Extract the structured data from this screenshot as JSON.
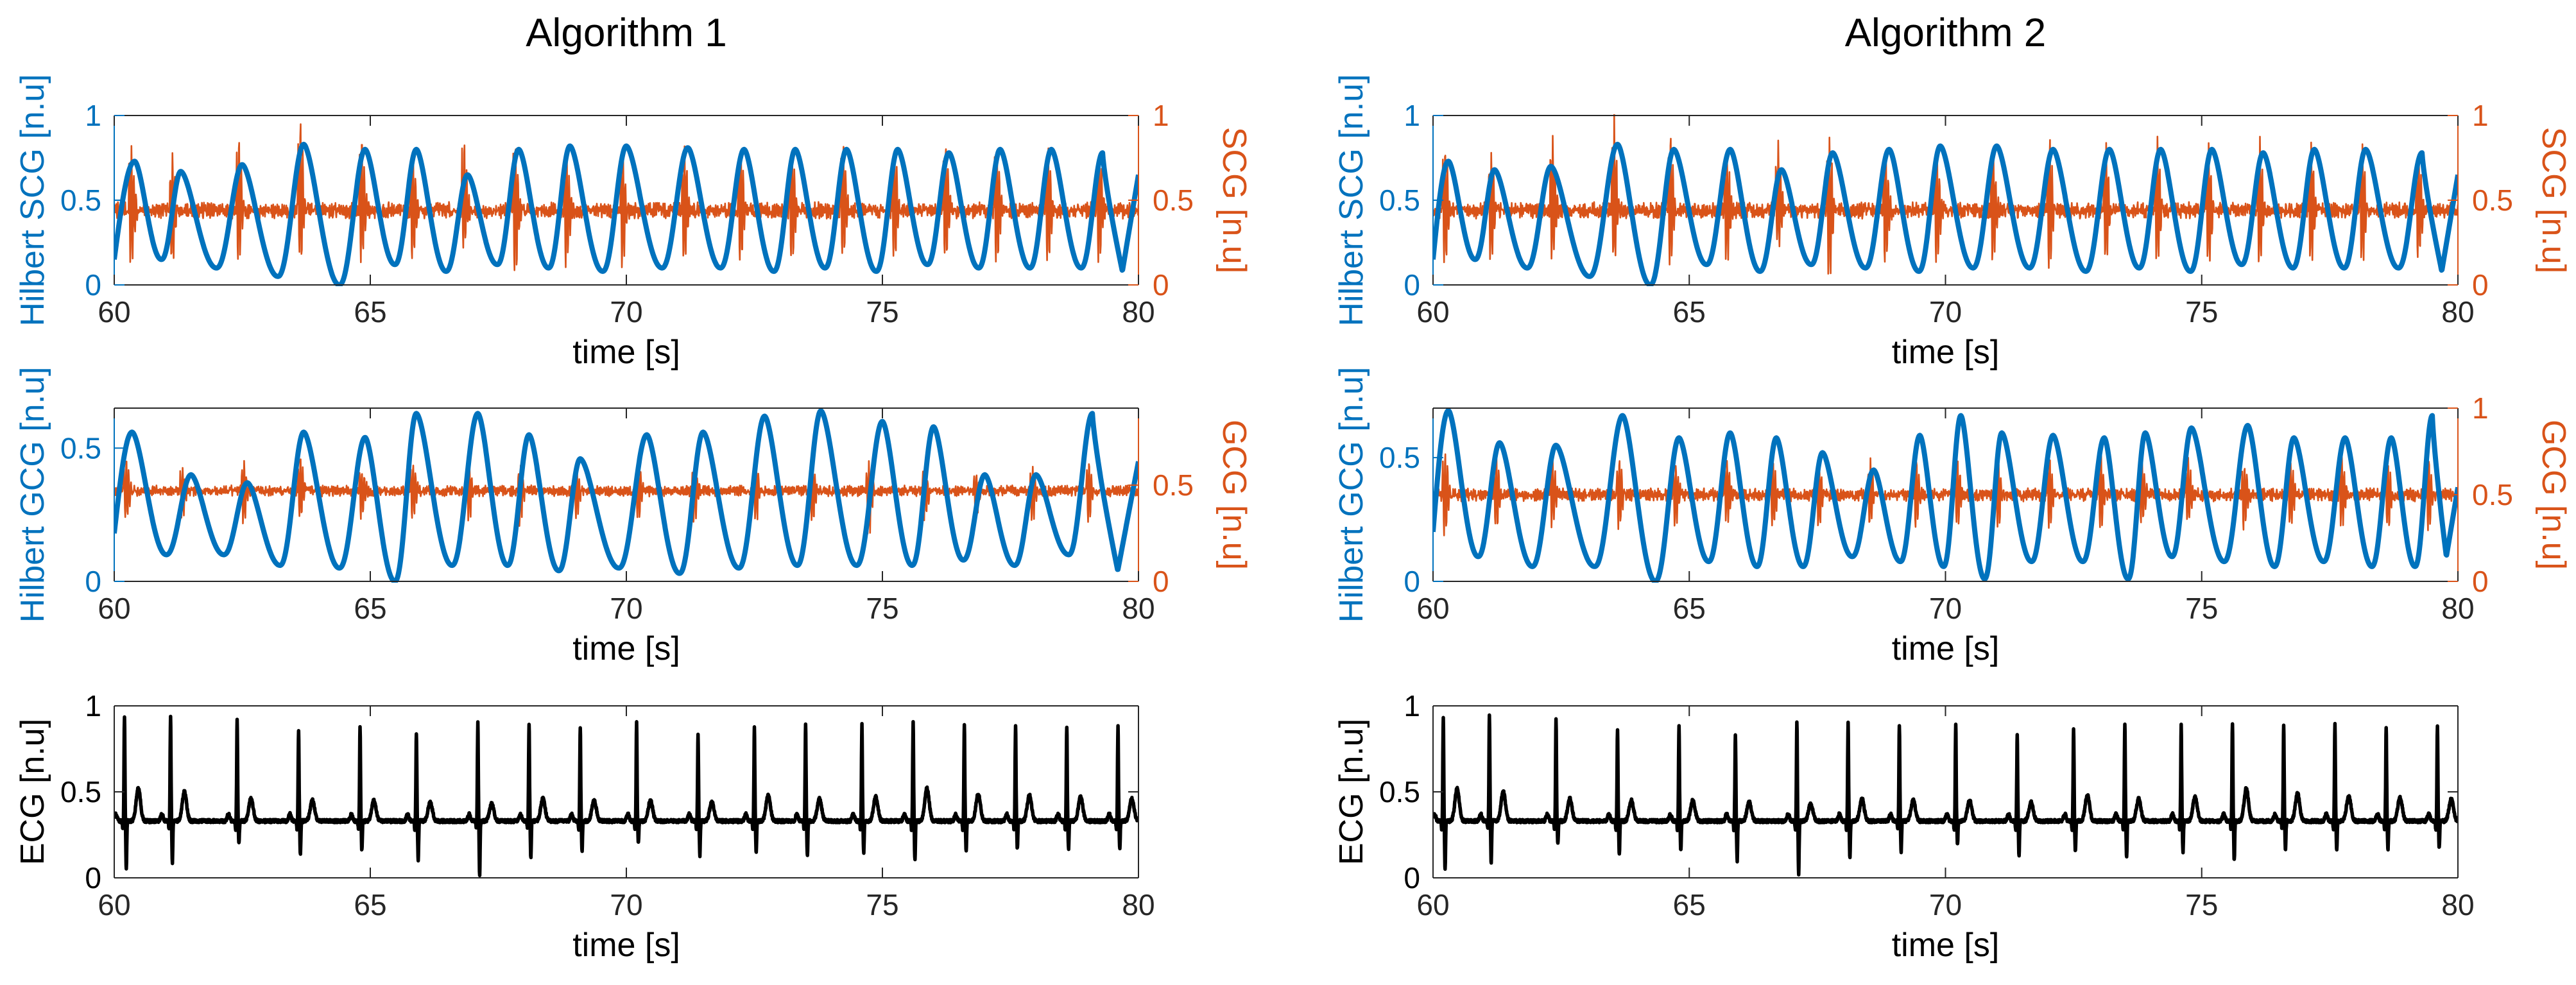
{
  "figure": {
    "background": "#ffffff"
  },
  "colors": {
    "blue": "#0072BD",
    "orange": "#D95319",
    "black": "#000000",
    "axis": "#262626"
  },
  "chart_data": [
    {
      "id": "a1_scg",
      "column": 0,
      "row": 0,
      "type": "line",
      "title": "Algorithm 1",
      "xlabel": "time [s]",
      "xlim": [
        60,
        80
      ],
      "xticks": [
        60,
        65,
        70,
        75,
        80
      ],
      "left": {
        "label": "Hilbert SCG [n.u]",
        "lim": [
          0,
          1
        ],
        "ticks": [
          0,
          0.5,
          1
        ],
        "tick_labels": [
          "0",
          "0.5",
          "1"
        ],
        "color": "#0072BD"
      },
      "right": {
        "label": "SCG [n.u]",
        "lim": [
          0,
          1
        ],
        "ticks": [
          0,
          0.5,
          1
        ],
        "tick_labels": [
          "0",
          "0.5",
          "1"
        ],
        "color": "#D95319"
      },
      "series": [
        {
          "name": "Hilbert SCG",
          "axis": "left",
          "kind": "envelope",
          "peak_times": [
            60.4,
            61.3,
            62.5,
            63.7,
            64.9,
            65.9,
            66.9,
            67.9,
            68.9,
            70.0,
            71.2,
            72.3,
            73.3,
            74.3,
            75.3,
            76.3,
            77.3,
            78.3,
            79.3
          ],
          "peak_values": [
            0.73,
            0.67,
            0.71,
            0.83,
            0.8,
            0.8,
            0.65,
            0.8,
            0.82,
            0.82,
            0.81,
            0.8,
            0.8,
            0.8,
            0.8,
            0.78,
            0.8,
            0.8,
            0.78
          ],
          "trough_values": [
            0.15,
            0.1,
            0.05,
            0.0,
            0.12,
            0.08,
            0.12,
            0.1,
            0.08,
            0.1,
            0.1,
            0.08,
            0.1,
            0.08,
            0.12,
            0.1,
            0.1,
            0.1,
            0.08
          ],
          "baseline": 0.4,
          "start": 0.15,
          "end": 0.65
        },
        {
          "name": "SCG",
          "axis": "right",
          "kind": "oscillation",
          "beat_times": [
            60.3,
            61.1,
            62.4,
            63.6,
            64.8,
            65.8,
            66.8,
            67.8,
            68.8,
            69.9,
            71.1,
            72.2,
            73.2,
            74.2,
            75.2,
            76.2,
            77.2,
            78.2,
            79.2
          ],
          "beat_max": [
            0.84,
            0.78,
            0.9,
            0.98,
            0.9,
            0.82,
            0.88,
            0.88,
            0.82,
            0.8,
            0.82,
            0.86,
            0.82,
            0.86,
            0.84,
            0.85,
            0.84,
            0.84,
            0.82
          ],
          "beat_min": [
            0.1,
            0.12,
            0.12,
            0.15,
            0.12,
            0.12,
            0.2,
            0.02,
            0.08,
            0.1,
            0.14,
            0.1,
            0.12,
            0.12,
            0.12,
            0.12,
            0.12,
            0.12,
            0.12
          ],
          "baseline": 0.44,
          "noise": 0.05
        }
      ]
    },
    {
      "id": "a1_gcg",
      "column": 0,
      "row": 1,
      "type": "line",
      "title": "",
      "xlabel": "time [s]",
      "xlim": [
        60,
        80
      ],
      "xticks": [
        60,
        65,
        70,
        75,
        80
      ],
      "left": {
        "label": "Hilbert GCG [n.u]",
        "lim": [
          0,
          0.65
        ],
        "ticks": [
          0,
          0.5
        ],
        "tick_labels": [
          "0",
          "0.5"
        ],
        "color": "#0072BD"
      },
      "right": {
        "label": "GCG [n.u]",
        "lim": [
          0,
          0.9
        ],
        "ticks": [
          0,
          0.5
        ],
        "tick_labels": [
          "0",
          "0.5"
        ],
        "color": "#D95319"
      },
      "series": [
        {
          "name": "Hilbert GCG",
          "axis": "left",
          "kind": "envelope",
          "peak_times": [
            60.35,
            61.5,
            62.6,
            63.7,
            64.9,
            65.9,
            67.1,
            68.1,
            69.1,
            70.4,
            71.5,
            72.7,
            73.8,
            75.0,
            76.0,
            77.0,
            78.0,
            79.1
          ],
          "peak_values": [
            0.56,
            0.4,
            0.37,
            0.56,
            0.54,
            0.63,
            0.63,
            0.55,
            0.46,
            0.55,
            0.56,
            0.62,
            0.64,
            0.6,
            0.58,
            0.4,
            0.4,
            0.63
          ],
          "trough_values": [
            0.1,
            0.1,
            0.06,
            0.05,
            0.0,
            0.06,
            0.06,
            0.04,
            0.05,
            0.03,
            0.05,
            0.06,
            0.06,
            0.06,
            0.08,
            0.06,
            0.1,
            0.04
          ],
          "baseline": 0.25,
          "start": 0.18,
          "end": 0.45
        },
        {
          "name": "GCG",
          "axis": "right",
          "kind": "oscillation",
          "beat_times": [
            60.2,
            61.3,
            62.5,
            63.6,
            64.8,
            65.8,
            66.9,
            67.9,
            69.0,
            70.2,
            71.3,
            72.5,
            73.6,
            74.7,
            75.8,
            76.8,
            77.9,
            79.0
          ],
          "beat_max": [
            0.64,
            0.6,
            0.62,
            0.66,
            0.6,
            0.62,
            0.62,
            0.6,
            0.58,
            0.62,
            0.6,
            0.62,
            0.62,
            0.62,
            0.6,
            0.58,
            0.58,
            0.62
          ],
          "beat_min": [
            0.3,
            0.32,
            0.3,
            0.32,
            0.3,
            0.3,
            0.32,
            0.3,
            0.32,
            0.3,
            0.3,
            0.32,
            0.3,
            0.22,
            0.3,
            0.3,
            0.3,
            0.3
          ],
          "baseline": 0.47,
          "noise": 0.03
        }
      ]
    },
    {
      "id": "a1_ecg",
      "column": 0,
      "row": 2,
      "type": "line",
      "title": "",
      "xlabel": "time [s]",
      "xlim": [
        60,
        80
      ],
      "xticks": [
        60,
        65,
        70,
        75,
        80
      ],
      "left": {
        "label": "ECG [n.u]",
        "lim": [
          0,
          1
        ],
        "ticks": [
          0,
          0.5,
          1
        ],
        "tick_labels": [
          "0",
          "0.5",
          "1"
        ],
        "color": "#000000"
      },
      "series": [
        {
          "name": "ECG",
          "axis": "left",
          "kind": "ecg",
          "beat_times": [
            60.2,
            61.1,
            62.4,
            63.6,
            64.8,
            65.9,
            67.1,
            68.1,
            69.1,
            70.2,
            71.4,
            72.5,
            73.5,
            74.6,
            75.6,
            76.6,
            77.6,
            78.6,
            79.6
          ],
          "r_values": [
            0.93,
            0.94,
            0.92,
            0.86,
            0.88,
            0.84,
            0.9,
            0.9,
            0.88,
            0.9,
            0.83,
            0.87,
            0.9,
            0.89,
            0.9,
            0.89,
            0.89,
            0.88,
            0.88
          ],
          "s_values": [
            0.05,
            0.09,
            0.2,
            0.14,
            0.16,
            0.1,
            0.02,
            0.12,
            0.15,
            0.2,
            0.13,
            0.15,
            0.12,
            0.15,
            0.1,
            0.16,
            0.17,
            0.17,
            0.17
          ],
          "t_values": [
            0.52,
            0.5,
            0.46,
            0.45,
            0.45,
            0.44,
            0.43,
            0.46,
            0.45,
            0.45,
            0.44,
            0.48,
            0.46,
            0.47,
            0.52,
            0.49,
            0.48,
            0.47,
            0.46
          ],
          "baseline": 0.33
        }
      ]
    },
    {
      "id": "a2_scg",
      "column": 1,
      "row": 0,
      "type": "line",
      "title": "Algorithm 2",
      "xlabel": "time [s]",
      "xlim": [
        60,
        80
      ],
      "xticks": [
        60,
        65,
        70,
        75,
        80
      ],
      "left": {
        "label": "Hilbert SCG [n.u]",
        "lim": [
          0,
          1
        ],
        "ticks": [
          0,
          0.5,
          1
        ],
        "tick_labels": [
          "0",
          "0.5",
          "1"
        ],
        "color": "#0072BD"
      },
      "right": {
        "label": "SCG [n.u]",
        "lim": [
          0,
          1
        ],
        "ticks": [
          0,
          0.5,
          1
        ],
        "tick_labels": [
          "0",
          "0.5",
          "1"
        ],
        "color": "#D95319"
      },
      "series": [
        {
          "name": "Hilbert SCG",
          "axis": "left",
          "kind": "envelope",
          "peak_times": [
            60.3,
            61.2,
            62.3,
            63.6,
            64.7,
            65.8,
            66.8,
            67.8,
            68.9,
            69.9,
            71.0,
            72.1,
            73.2,
            74.2,
            75.2,
            76.2,
            77.2,
            78.2,
            79.3
          ],
          "peak_values": [
            0.73,
            0.68,
            0.7,
            0.83,
            0.8,
            0.8,
            0.68,
            0.78,
            0.8,
            0.82,
            0.82,
            0.8,
            0.8,
            0.8,
            0.8,
            0.78,
            0.8,
            0.8,
            0.78
          ],
          "trough_values": [
            0.15,
            0.1,
            0.05,
            0.0,
            0.12,
            0.08,
            0.12,
            0.1,
            0.08,
            0.1,
            0.1,
            0.08,
            0.1,
            0.08,
            0.12,
            0.1,
            0.1,
            0.1,
            0.08
          ],
          "baseline": 0.4,
          "start": 0.15,
          "end": 0.65
        },
        {
          "name": "SCG",
          "axis": "right",
          "kind": "oscillation",
          "beat_times": [
            60.2,
            61.1,
            62.3,
            63.5,
            64.6,
            65.7,
            66.7,
            67.7,
            68.8,
            69.8,
            70.9,
            72.0,
            73.1,
            74.1,
            75.1,
            76.1,
            77.1,
            78.1,
            79.2
          ],
          "beat_max": [
            0.84,
            0.78,
            0.9,
            0.98,
            0.9,
            0.82,
            0.88,
            0.88,
            0.82,
            0.8,
            0.82,
            0.86,
            0.82,
            0.86,
            0.84,
            0.85,
            0.84,
            0.84,
            0.82
          ],
          "beat_min": [
            0.1,
            0.12,
            0.12,
            0.15,
            0.12,
            0.12,
            0.2,
            0.02,
            0.08,
            0.1,
            0.14,
            0.1,
            0.12,
            0.12,
            0.12,
            0.12,
            0.12,
            0.12,
            0.12
          ],
          "baseline": 0.44,
          "noise": 0.05
        }
      ]
    },
    {
      "id": "a2_gcg",
      "column": 1,
      "row": 1,
      "type": "line",
      "title": "",
      "xlabel": "time [s]",
      "xlim": [
        60,
        80
      ],
      "xticks": [
        60,
        65,
        70,
        75,
        80
      ],
      "left": {
        "label": "Hilbert GCG [n.u]",
        "lim": [
          0,
          0.7
        ],
        "ticks": [
          0,
          0.5
        ],
        "tick_labels": [
          "0",
          "0.5"
        ],
        "color": "#0072BD"
      },
      "right": {
        "label": "GCG [n.u]",
        "lim": [
          0,
          1
        ],
        "ticks": [
          0,
          0.5,
          1
        ],
        "tick_labels": [
          "0",
          "0.5",
          "1"
        ],
        "color": "#D95319"
      },
      "series": [
        {
          "name": "Hilbert GCG",
          "axis": "left",
          "kind": "envelope",
          "peak_times": [
            60.3,
            61.3,
            62.4,
            63.7,
            64.8,
            65.8,
            66.7,
            67.6,
            68.6,
            69.5,
            70.3,
            71.1,
            72.1,
            73.1,
            73.9,
            74.8,
            75.9,
            76.8,
            77.8,
            78.7,
            79.5
          ],
          "peak_values": [
            0.69,
            0.56,
            0.55,
            0.67,
            0.58,
            0.6,
            0.58,
            0.52,
            0.45,
            0.59,
            0.67,
            0.6,
            0.59,
            0.58,
            0.6,
            0.62,
            0.63,
            0.58,
            0.58,
            0.58,
            0.67
          ],
          "trough_values": [
            0.1,
            0.06,
            0.06,
            0.0,
            0.08,
            0.06,
            0.06,
            0.1,
            0.08,
            0.06,
            0.01,
            0.08,
            0.08,
            0.01,
            0.1,
            0.08,
            0.06,
            0.08,
            0.06,
            0.06,
            0.1
          ],
          "baseline": 0.25,
          "start": 0.2,
          "end": 0.38
        },
        {
          "name": "GCG",
          "axis": "right",
          "kind": "oscillation",
          "beat_times": [
            60.2,
            61.2,
            62.3,
            63.6,
            64.7,
            65.7,
            66.6,
            67.5,
            68.5,
            69.4,
            70.2,
            71.0,
            72.0,
            73.0,
            73.8,
            74.7,
            75.8,
            76.7,
            77.7,
            78.6,
            79.4
          ],
          "beat_max": [
            0.78,
            0.72,
            0.72,
            0.72,
            0.7,
            0.72,
            0.7,
            0.7,
            0.68,
            0.72,
            0.72,
            0.7,
            0.72,
            0.72,
            0.7,
            0.72,
            0.7,
            0.7,
            0.72,
            0.7,
            0.72
          ],
          "beat_min": [
            0.25,
            0.3,
            0.32,
            0.3,
            0.3,
            0.32,
            0.3,
            0.3,
            0.32,
            0.3,
            0.3,
            0.32,
            0.3,
            0.3,
            0.3,
            0.32,
            0.3,
            0.3,
            0.3,
            0.3,
            0.3
          ],
          "baseline": 0.5,
          "noise": 0.04
        }
      ]
    },
    {
      "id": "a2_ecg",
      "column": 1,
      "row": 2,
      "type": "line",
      "title": "",
      "xlabel": "time [s]",
      "xlim": [
        60,
        80
      ],
      "xticks": [
        60,
        65,
        70,
        75,
        80
      ],
      "left": {
        "label": "ECG [n.u]",
        "lim": [
          0,
          1
        ],
        "ticks": [
          0,
          0.5,
          1
        ],
        "tick_labels": [
          "0",
          "0.5",
          "1"
        ],
        "color": "#000000"
      },
      "series": [
        {
          "name": "ECG",
          "axis": "left",
          "kind": "ecg",
          "beat_times": [
            60.2,
            61.1,
            62.4,
            63.6,
            64.8,
            65.9,
            67.1,
            68.1,
            69.1,
            70.2,
            71.4,
            72.5,
            73.5,
            74.6,
            75.6,
            76.6,
            77.6,
            78.6,
            79.6
          ],
          "r_values": [
            0.93,
            0.94,
            0.92,
            0.86,
            0.88,
            0.84,
            0.9,
            0.9,
            0.88,
            0.9,
            0.83,
            0.87,
            0.9,
            0.89,
            0.9,
            0.89,
            0.89,
            0.88,
            0.88
          ],
          "s_values": [
            0.05,
            0.09,
            0.2,
            0.14,
            0.16,
            0.1,
            0.02,
            0.12,
            0.15,
            0.2,
            0.13,
            0.15,
            0.12,
            0.15,
            0.1,
            0.16,
            0.17,
            0.17,
            0.17
          ],
          "t_values": [
            0.52,
            0.5,
            0.46,
            0.45,
            0.45,
            0.44,
            0.43,
            0.46,
            0.45,
            0.45,
            0.44,
            0.48,
            0.46,
            0.47,
            0.52,
            0.49,
            0.48,
            0.47,
            0.46
          ],
          "baseline": 0.33
        }
      ]
    }
  ]
}
